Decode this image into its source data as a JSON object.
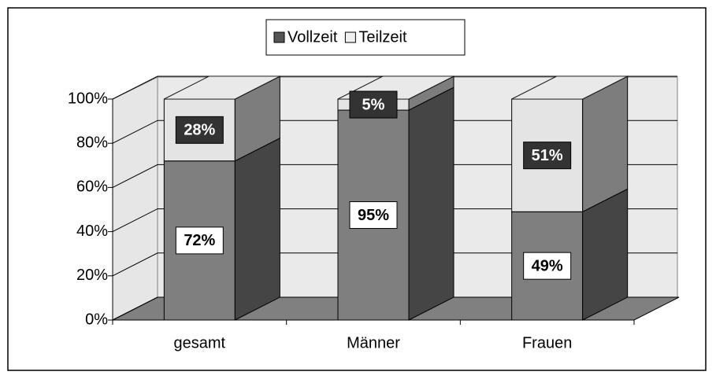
{
  "chart_data": {
    "type": "bar3d_stacked",
    "categories": [
      "gesamt",
      "Männer",
      "Frauen"
    ],
    "series": [
      {
        "name": "Vollzeit",
        "color": "#7f7f7f",
        "values": [
          72,
          95,
          49
        ],
        "value_labels": [
          "72%",
          "95%",
          "49%"
        ]
      },
      {
        "name": "Teilzeit",
        "color": "#e4e4e4",
        "values": [
          28,
          5,
          51
        ],
        "value_labels": [
          "28%",
          "5%",
          "51%"
        ]
      }
    ],
    "ylim": [
      0,
      100
    ],
    "yticks": [
      {
        "value": 0,
        "label": "0%"
      },
      {
        "value": 20,
        "label": "20%"
      },
      {
        "value": 40,
        "label": "40%"
      },
      {
        "value": 60,
        "label": "60%"
      },
      {
        "value": 80,
        "label": "80%"
      },
      {
        "value": 100,
        "label": "100%"
      }
    ],
    "grid": true,
    "legend": "top"
  }
}
